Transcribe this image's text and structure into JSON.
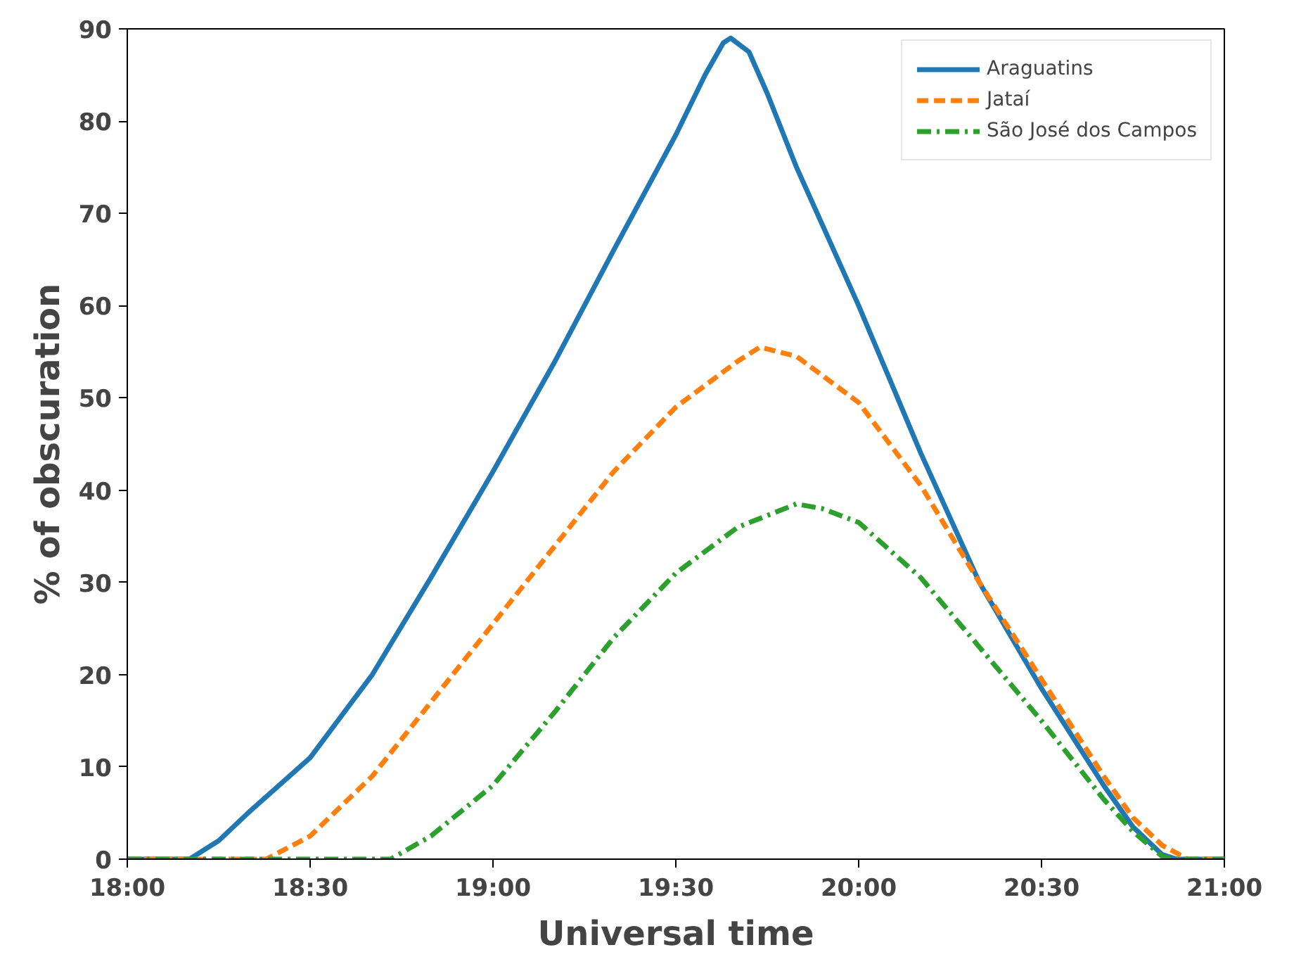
{
  "chart_data": {
    "type": "line",
    "xlabel": "Universal time",
    "ylabel": "% of obscuration",
    "xlim": [
      18,
      21
    ],
    "ylim": [
      0,
      90
    ],
    "xticks": [
      {
        "value": 18,
        "label": "18:00"
      },
      {
        "value": 18.5,
        "label": "18:30"
      },
      {
        "value": 19,
        "label": "19:00"
      },
      {
        "value": 19.5,
        "label": "19:30"
      },
      {
        "value": 20,
        "label": "20:00"
      },
      {
        "value": 20.5,
        "label": "20:30"
      },
      {
        "value": 21,
        "label": "21:00"
      }
    ],
    "yticks": [
      0,
      10,
      20,
      30,
      40,
      50,
      60,
      70,
      80,
      90
    ],
    "grid": false,
    "legend": "top right",
    "series": [
      {
        "name": "Araguatins",
        "color": "#1f77b4",
        "line_style": "solid",
        "x": [
          18.0,
          18.17,
          18.25,
          18.33,
          18.5,
          18.67,
          18.83,
          19.0,
          19.17,
          19.33,
          19.5,
          19.58,
          19.63,
          19.65,
          19.7,
          19.75,
          19.83,
          20.0,
          20.17,
          20.33,
          20.5,
          20.67,
          20.75,
          20.83,
          20.87,
          21.0
        ],
        "values": [
          0,
          0,
          2,
          5,
          11,
          20,
          30.5,
          42,
          54,
          66,
          78.5,
          85,
          88.5,
          89,
          87.5,
          83,
          75,
          60,
          44,
          30,
          18.5,
          8,
          3.5,
          0.5,
          0,
          0
        ]
      },
      {
        "name": "Jataí",
        "color": "#ff7f0e",
        "line_style": "dashed",
        "x": [
          18.0,
          18.38,
          18.5,
          18.67,
          18.83,
          19.0,
          19.17,
          19.33,
          19.5,
          19.67,
          19.73,
          19.83,
          20.0,
          20.17,
          20.33,
          20.5,
          20.67,
          20.75,
          20.83,
          20.9,
          21.0
        ],
        "values": [
          0,
          0,
          2.5,
          9,
          17,
          25.5,
          34,
          42,
          49,
          54,
          55.5,
          54.5,
          49.5,
          40.5,
          30,
          19.5,
          9,
          4.5,
          1.5,
          0,
          0
        ]
      },
      {
        "name": "São José dos Campos",
        "color": "#2ca02c",
        "line_style": "dashdot",
        "x": [
          18.0,
          18.72,
          18.83,
          19.0,
          19.17,
          19.33,
          19.5,
          19.67,
          19.83,
          19.9,
          20.0,
          20.17,
          20.33,
          20.5,
          20.67,
          20.75,
          20.83,
          20.87,
          21.0
        ],
        "values": [
          0,
          0,
          2.5,
          8,
          16,
          24,
          31,
          36,
          38.5,
          38,
          36.5,
          30.5,
          23,
          15,
          6.5,
          3,
          0.3,
          0,
          0
        ]
      }
    ]
  }
}
